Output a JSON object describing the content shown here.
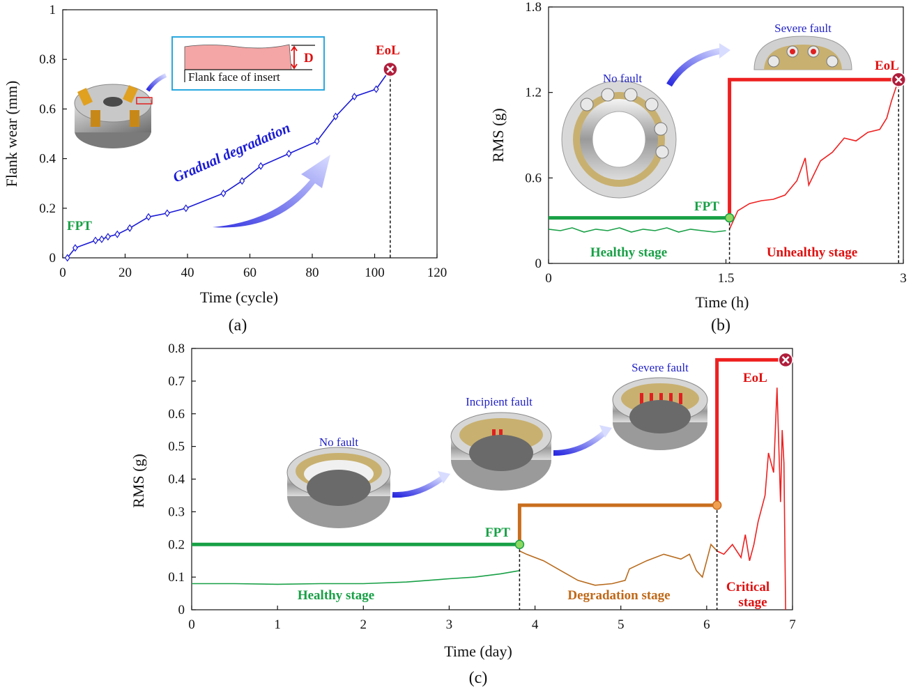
{
  "chart_data": [
    {
      "id": "a",
      "type": "line",
      "panel_label": "(a)",
      "xlabel": "Time (cycle)",
      "ylabel": "Flank wear (mm)",
      "xlim": [
        0,
        120
      ],
      "ylim": [
        0,
        1
      ],
      "xticks": [
        0,
        20,
        40,
        60,
        80,
        100,
        120
      ],
      "yticks": [
        0,
        0.2,
        0.4,
        0.6,
        0.8,
        1
      ],
      "ytick_labels": [
        "0",
        "0.2",
        "0.4",
        "0.6",
        "0.8",
        "1"
      ],
      "series": [
        {
          "color": "#1a1ad6",
          "marker": "diamond",
          "x": [
            1.5,
            4,
            10.5,
            12.5,
            14.5,
            17.5,
            21.5,
            27.5,
            33.5,
            39.5,
            51.5,
            57.5,
            63.5,
            72.5,
            81.5,
            87.5,
            93.5,
            100.5,
            105
          ],
          "y": [
            0,
            0.04,
            0.07,
            0.075,
            0.085,
            0.095,
            0.12,
            0.165,
            0.18,
            0.2,
            0.26,
            0.31,
            0.37,
            0.42,
            0.47,
            0.57,
            0.65,
            0.68,
            0.76
          ]
        }
      ],
      "annotations": {
        "fpt": "FPT",
        "eol": "EoL",
        "trend": "Gradual degradation",
        "inset_caption": "Flank face of insert",
        "inset_mark": "D"
      },
      "eol_x": 105,
      "eol_y": 0.76
    },
    {
      "id": "b",
      "type": "line",
      "panel_label": "(b)",
      "xlabel": "Time (h)",
      "ylabel": "RMS (g)",
      "xlim": [
        0,
        3
      ],
      "ylim": [
        0,
        1.8
      ],
      "xticks": [
        0,
        1.5,
        3
      ],
      "xtick_labels": [
        "0",
        "1.5",
        "3"
      ],
      "yticks": [
        0,
        0.6,
        1.2,
        1.8
      ],
      "ytick_labels": [
        "0",
        "0.6",
        "1.2",
        "1.8"
      ],
      "fpt_x": 1.53,
      "eol_x": 2.96,
      "health_indicator": {
        "healthy_level": 0.32,
        "unhealthy_level": 1.29
      },
      "series": [
        {
          "color": "#18a046",
          "x": [
            0,
            0.1,
            0.2,
            0.3,
            0.4,
            0.5,
            0.6,
            0.7,
            0.8,
            0.9,
            1.0,
            1.1,
            1.2,
            1.3,
            1.4,
            1.5
          ],
          "y": [
            0.24,
            0.23,
            0.25,
            0.22,
            0.24,
            0.23,
            0.25,
            0.22,
            0.24,
            0.23,
            0.25,
            0.22,
            0.24,
            0.23,
            0.22,
            0.23
          ]
        },
        {
          "color": "#ee2020",
          "x": [
            1.53,
            1.6,
            1.7,
            1.8,
            1.9,
            2.0,
            2.1,
            2.17,
            2.2,
            2.3,
            2.4,
            2.5,
            2.6,
            2.7,
            2.8,
            2.86,
            2.9,
            2.96
          ],
          "y": [
            0.24,
            0.37,
            0.42,
            0.44,
            0.45,
            0.48,
            0.58,
            0.74,
            0.55,
            0.72,
            0.78,
            0.88,
            0.86,
            0.92,
            0.94,
            1.02,
            1.14,
            1.29
          ]
        }
      ],
      "annotations": {
        "fpt": "FPT",
        "eol": "EoL",
        "healthy": "Healthy stage",
        "unhealthy": "Unhealthy stage",
        "no_fault": "No fault",
        "severe_fault": "Severe fault"
      }
    },
    {
      "id": "c",
      "type": "line",
      "panel_label": "(c)",
      "xlabel": "Time (day)",
      "ylabel": "RMS (g)",
      "xlim": [
        0,
        7
      ],
      "ylim": [
        0,
        0.8
      ],
      "xticks": [
        0,
        1,
        2,
        3,
        4,
        5,
        6,
        7
      ],
      "yticks": [
        0,
        0.1,
        0.2,
        0.3,
        0.4,
        0.5,
        0.6,
        0.7,
        0.8
      ],
      "ytick_labels": [
        "0",
        "0.1",
        "0.2",
        "0.3",
        "0.4",
        "0.5",
        "0.6",
        "0.7",
        "0.8"
      ],
      "fpt_x": 3.82,
      "stage2_x": 6.12,
      "eol_x": 6.92,
      "health_indicator": {
        "healthy_level": 0.2,
        "degradation_level": 0.32,
        "critical_level": 0.765
      },
      "series": [
        {
          "color": "#18a046",
          "x": [
            0,
            0.5,
            1.0,
            1.5,
            2.0,
            2.5,
            3.0,
            3.3,
            3.6,
            3.82
          ],
          "y": [
            0.08,
            0.08,
            0.078,
            0.08,
            0.08,
            0.085,
            0.095,
            0.1,
            0.11,
            0.12
          ]
        },
        {
          "color": "#b86a1c",
          "x": [
            3.82,
            3.9,
            4.1,
            4.3,
            4.5,
            4.7,
            4.9,
            5.05,
            5.1,
            5.3,
            5.5,
            5.7,
            5.8,
            5.88,
            5.95,
            6.05,
            6.12
          ],
          "y": [
            0.18,
            0.17,
            0.15,
            0.12,
            0.09,
            0.075,
            0.08,
            0.09,
            0.125,
            0.15,
            0.17,
            0.155,
            0.17,
            0.12,
            0.1,
            0.2,
            0.18
          ]
        },
        {
          "color": "#ee2020",
          "x": [
            6.12,
            6.2,
            6.3,
            6.4,
            6.45,
            6.5,
            6.55,
            6.6,
            6.68,
            6.72,
            6.78,
            6.82,
            6.86,
            6.88,
            6.9,
            6.92
          ],
          "y": [
            0.18,
            0.17,
            0.2,
            0.16,
            0.23,
            0.15,
            0.2,
            0.27,
            0.35,
            0.48,
            0.42,
            0.68,
            0.33,
            0.55,
            0.45,
            0.0
          ]
        }
      ],
      "annotations": {
        "fpt": "FPT",
        "eol": "EoL",
        "healthy": "Healthy stage",
        "degradation": "Degradation stage",
        "critical_1": "Critical",
        "critical_2": "stage",
        "no_fault": "No fault",
        "incipient_fault": "Incipient fault",
        "severe_fault": "Severe fault"
      }
    }
  ],
  "colors": {
    "green": "#18a046",
    "red": "#ee2020",
    "orange": "#c96e1e",
    "blue": "#1a1ad6",
    "eol_marker": "#b01e3c"
  }
}
